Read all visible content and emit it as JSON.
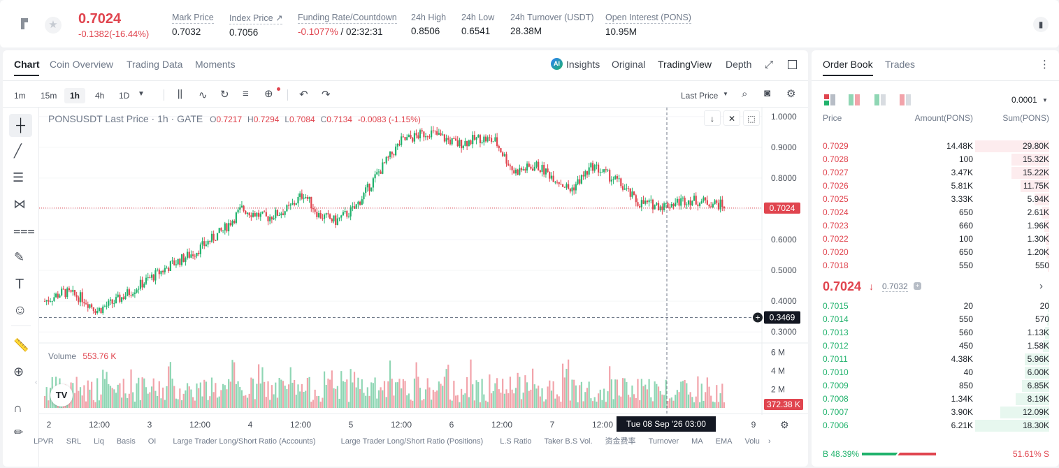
{
  "ticker": {
    "price": "0.7024",
    "change": "-0.1382(-16.44%)"
  },
  "stats": [
    {
      "label": "Mark Price",
      "value": "0.7032"
    },
    {
      "label": "Index Price ↗",
      "value": "0.7056"
    },
    {
      "label": "Funding Rate/Countdown",
      "value_red": "-0.1077%",
      "value": " / 02:32:31"
    },
    {
      "label": "24h High",
      "value": "0.8506"
    },
    {
      "label": "24h Low",
      "value": "0.6541"
    },
    {
      "label": "24h Turnover (USDT)",
      "value": "28.38M"
    },
    {
      "label": "Open Interest (PONS)",
      "value": "10.95M"
    }
  ],
  "chart_tabs": [
    "Chart",
    "Coin Overview",
    "Trading Data",
    "Moments"
  ],
  "view_tabs": {
    "insights": "Insights",
    "original": "Original",
    "tradingview": "TradingView",
    "depth": "Depth"
  },
  "timeframes": [
    "1m",
    "15m",
    "1h",
    "4h",
    "1D"
  ],
  "last_price_select": "Last Price",
  "legend": {
    "symbol": "PONSUSDT Last Price · 1h · GATE",
    "o": "0.7217",
    "h": "0.7294",
    "l": "0.7084",
    "c": "0.7134",
    "chg": "-0.0083 (-1.15%)"
  },
  "volume": {
    "label": "Volume",
    "value": "553.76 K",
    "tag": "372.38 K",
    "ticks": [
      "6 M",
      "4 M",
      "2 M"
    ]
  },
  "price_axis": [
    "1.0000",
    "0.9000",
    "0.8000",
    "0.7000",
    "0.6000",
    "0.5000",
    "0.4000",
    "0.3000"
  ],
  "price_tag": "0.7024",
  "crosshair_tag": "0.3469",
  "time_axis": [
    "2",
    "12:00",
    "3",
    "12:00",
    "4",
    "12:00",
    "5",
    "12:00",
    "6",
    "12:00",
    "7",
    "12:00",
    "9"
  ],
  "crosshair_time": "Tue 08 Sep '26   03:00",
  "indicators": [
    "LPVR",
    "SRL",
    "Liq",
    "Basis",
    "OI",
    "Large Trader Long/Short Ratio (Accounts)",
    "Large Trader Long/Short Ratio (Positions)",
    "L.S Ratio",
    "Taker B.S Vol.",
    "资金费率",
    "Turnover",
    "MA",
    "EMA",
    "Volu"
  ],
  "orderbook": {
    "tabs": [
      "Order Book",
      "Trades"
    ],
    "precision": "0.0001",
    "headers": [
      "Price",
      "Amount(PONS)",
      "Sum(PONS)"
    ],
    "asks": [
      [
        "0.7029",
        "14.48K",
        "29.80K"
      ],
      [
        "0.7028",
        "100",
        "15.32K"
      ],
      [
        "0.7027",
        "3.47K",
        "15.22K"
      ],
      [
        "0.7026",
        "5.81K",
        "11.75K"
      ],
      [
        "0.7025",
        "3.33K",
        "5.94K"
      ],
      [
        "0.7024",
        "650",
        "2.61K"
      ],
      [
        "0.7023",
        "660",
        "1.96K"
      ],
      [
        "0.7022",
        "100",
        "1.30K"
      ],
      [
        "0.7020",
        "650",
        "1.20K"
      ],
      [
        "0.7018",
        "550",
        "550"
      ]
    ],
    "ask_fill": [
      1.0,
      0.51,
      0.51,
      0.39,
      0.2,
      0.09,
      0.066,
      0.044,
      0.04,
      0.018
    ],
    "mid_price": "0.7024",
    "mark": "0.7032",
    "bids": [
      [
        "0.7015",
        "20",
        "20"
      ],
      [
        "0.7014",
        "550",
        "570"
      ],
      [
        "0.7013",
        "560",
        "1.13K"
      ],
      [
        "0.7012",
        "450",
        "1.58K"
      ],
      [
        "0.7011",
        "4.38K",
        "5.96K"
      ],
      [
        "0.7010",
        "40",
        "6.00K"
      ],
      [
        "0.7009",
        "850",
        "6.85K"
      ],
      [
        "0.7008",
        "1.34K",
        "8.19K"
      ],
      [
        "0.7007",
        "3.90K",
        "12.09K"
      ],
      [
        "0.7006",
        "6.21K",
        "18.30K"
      ]
    ],
    "bid_fill": [
      0.002,
      0.03,
      0.06,
      0.086,
      0.33,
      0.33,
      0.37,
      0.45,
      0.66,
      1.0
    ],
    "buy_pct": "48.39%",
    "sell_pct": "51.61%",
    "buy_label": "B",
    "sell_label": "S",
    "buy_ratio": 0.4839
  },
  "chart_data": {
    "type": "candlestick",
    "price_range": [
      0.28,
      1.02
    ],
    "volume_range": [
      0,
      6400000
    ],
    "series": []
  },
  "colors": {
    "up": "#20b26c",
    "down": "#e0454f",
    "up_vol": "#8fd6b4",
    "down_vol": "#f2a3aa"
  }
}
